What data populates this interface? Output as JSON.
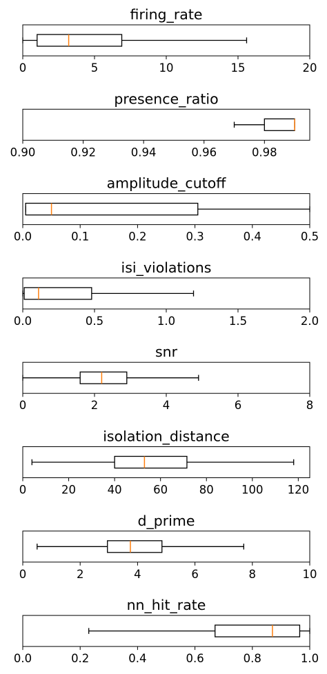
{
  "colors": {
    "median": "#ff7f0e",
    "box": "#000000",
    "background": "#ffffff"
  },
  "chart_data": [
    {
      "type": "boxplot",
      "orientation": "horizontal",
      "title": "firing_rate",
      "xlim": [
        0,
        20
      ],
      "ticks": [
        0,
        5,
        10,
        15,
        20
      ],
      "tick_labels": [
        "0",
        "5",
        "10",
        "15",
        "20"
      ],
      "whisker_low": 0,
      "q1": 1.0,
      "median": 3.2,
      "q3": 6.9,
      "whisker_high": 15.6
    },
    {
      "type": "boxplot",
      "orientation": "horizontal",
      "title": "presence_ratio",
      "xlim": [
        0.9,
        0.995
      ],
      "ticks": [
        0.9,
        0.92,
        0.94,
        0.96,
        0.98
      ],
      "tick_labels": [
        "0.90",
        "0.92",
        "0.94",
        "0.96",
        "0.98"
      ],
      "whisker_low": 0.97,
      "q1": 0.98,
      "median": 0.99,
      "q3": 0.99,
      "whisker_high": 0.99
    },
    {
      "type": "boxplot",
      "orientation": "horizontal",
      "title": "amplitude_cutoff",
      "xlim": [
        0,
        0.5
      ],
      "ticks": [
        0,
        0.1,
        0.2,
        0.3,
        0.4,
        0.5
      ],
      "tick_labels": [
        "0.0",
        "0.1",
        "0.2",
        "0.3",
        "0.4",
        "0.5"
      ],
      "whisker_low": 0.005,
      "q1": 0.005,
      "median": 0.05,
      "q3": 0.305,
      "whisker_high": 0.5
    },
    {
      "type": "boxplot",
      "orientation": "horizontal",
      "title": "isi_violations",
      "xlim": [
        0,
        2.0
      ],
      "ticks": [
        0,
        0.5,
        1.0,
        1.5,
        2.0
      ],
      "tick_labels": [
        "0.0",
        "0.5",
        "1.0",
        "1.5",
        "2.0"
      ],
      "whisker_low": 0,
      "q1": 0.01,
      "median": 0.11,
      "q3": 0.48,
      "whisker_high": 1.19
    },
    {
      "type": "boxplot",
      "orientation": "horizontal",
      "title": "snr",
      "xlim": [
        0,
        8
      ],
      "ticks": [
        0,
        2,
        4,
        6,
        8
      ],
      "tick_labels": [
        "0",
        "2",
        "4",
        "6",
        "8"
      ],
      "whisker_low": 0,
      "q1": 1.6,
      "median": 2.2,
      "q3": 2.9,
      "whisker_high": 4.9
    },
    {
      "type": "boxplot",
      "orientation": "horizontal",
      "title": "isolation_distance",
      "xlim": [
        0,
        125
      ],
      "ticks": [
        0,
        20,
        40,
        60,
        80,
        100,
        120
      ],
      "tick_labels": [
        "0",
        "20",
        "40",
        "60",
        "80",
        "100",
        "120"
      ],
      "whisker_low": 4,
      "q1": 40,
      "median": 53,
      "q3": 71.5,
      "whisker_high": 118
    },
    {
      "type": "boxplot",
      "orientation": "horizontal",
      "title": "d_prime",
      "xlim": [
        0,
        10
      ],
      "ticks": [
        0,
        2,
        4,
        6,
        8,
        10
      ],
      "tick_labels": [
        "0",
        "2",
        "4",
        "6",
        "8",
        "10"
      ],
      "whisker_low": 0.5,
      "q1": 2.95,
      "median": 3.75,
      "q3": 4.85,
      "whisker_high": 7.7
    },
    {
      "type": "boxplot",
      "orientation": "horizontal",
      "title": "nn_hit_rate",
      "xlim": [
        0,
        1.0
      ],
      "ticks": [
        0,
        0.2,
        0.4,
        0.6,
        0.8,
        1.0
      ],
      "tick_labels": [
        "0.0",
        "0.2",
        "0.4",
        "0.6",
        "0.8",
        "1.0"
      ],
      "whisker_low": 0.23,
      "q1": 0.67,
      "median": 0.87,
      "q3": 0.965,
      "whisker_high": 1.0
    }
  ]
}
